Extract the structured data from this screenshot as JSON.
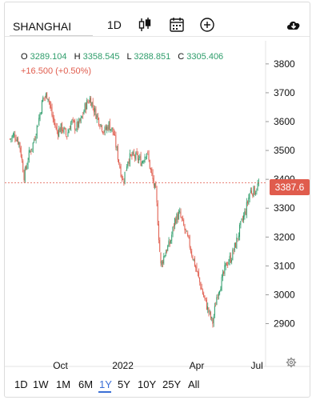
{
  "toolbar": {
    "symbol": "SHANGHAI",
    "interval": "1D",
    "icons": [
      "candlestick-icon",
      "calendar-icon",
      "plus-circle-icon",
      "cloud-download-icon"
    ]
  },
  "ohlc": {
    "o_label": "O",
    "o": "3289.104",
    "h_label": "H",
    "h": "3358.545",
    "l_label": "L",
    "l": "3288.851",
    "c_label": "C",
    "c": "3305.406",
    "change": "+16.500",
    "change_pct": "(+0.50%)"
  },
  "last_price_label": "3387.6",
  "ranges": [
    "1D",
    "1W",
    "1M",
    "6M",
    "1Y",
    "5Y",
    "10Y",
    "25Y",
    "All"
  ],
  "active_range": "1Y",
  "colors": {
    "up": "#2e9d6b",
    "down": "#e05c4d",
    "accent": "#3b6fd6",
    "grid": "#eeeeee"
  },
  "chart_data": {
    "type": "candlestick",
    "title": "",
    "ylim": [
      2810,
      3880
    ],
    "y_ticks": [
      3800,
      3700,
      3600,
      3500,
      3400,
      3300,
      3200,
      3100,
      3000,
      2900
    ],
    "x_tick_labels": [
      "Oct",
      "2022",
      "Apr",
      "Jul"
    ],
    "x_tick_weeks": [
      11,
      24.5,
      40.5,
      53.5
    ],
    "last_price": 3387.6,
    "weeks": 54,
    "close_path": [
      3540,
      3555,
      3525,
      3410,
      3485,
      3530,
      3600,
      3680,
      3695,
      3615,
      3565,
      3580,
      3550,
      3600,
      3580,
      3600,
      3655,
      3680,
      3635,
      3600,
      3565,
      3590,
      3560,
      3470,
      3390,
      3470,
      3480,
      3475,
      3460,
      3500,
      3420,
      3350,
      3100,
      3150,
      3180,
      3260,
      3280,
      3230,
      3180,
      3120,
      3060,
      3000,
      2950,
      2900,
      3005,
      3050,
      3110,
      3130,
      3180,
      3240,
      3290,
      3360,
      3360,
      3390
    ]
  }
}
